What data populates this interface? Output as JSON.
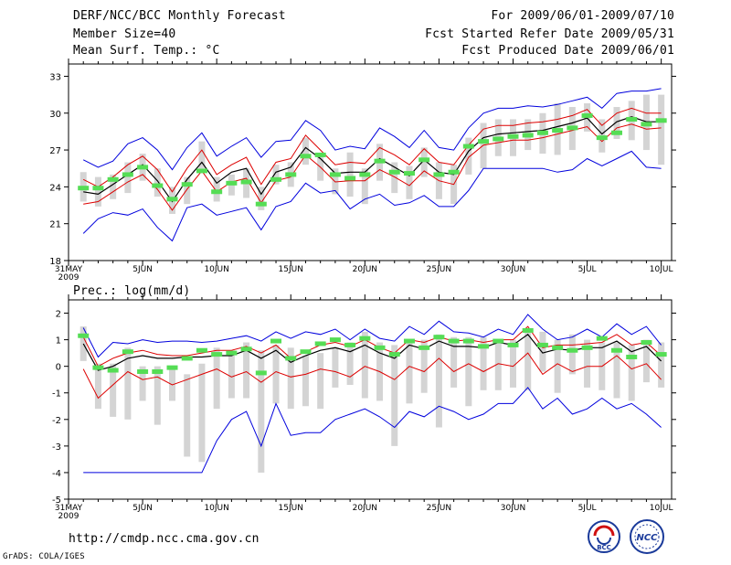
{
  "header": {
    "title": "DERF/NCC/BCC Monthly Forecast",
    "member_size": "Member Size=40",
    "period": "For 2009/06/01-2009/07/10",
    "started": "Fcst Started Refer Date 2009/05/31",
    "produced": "Fcst Produced Date 2009/06/01"
  },
  "footer": {
    "url": "http://cmdp.ncc.cma.gov.cn",
    "grads": "GrADS: COLA/IGES",
    "logo_left_text": "BCC",
    "logo_right_text": "NCC"
  },
  "x_ticks": [
    {
      "day": 0,
      "label": "31MAY",
      "sub": "2009"
    },
    {
      "day": 5,
      "label": "5JUN"
    },
    {
      "day": 10,
      "label": "10JUN"
    },
    {
      "day": 15,
      "label": "15JUN"
    },
    {
      "day": 20,
      "label": "20JUN"
    },
    {
      "day": 25,
      "label": "25JUN"
    },
    {
      "day": 30,
      "label": "30JUN"
    },
    {
      "day": 35,
      "label": "5JUL"
    },
    {
      "day": 40,
      "label": "10JUL"
    }
  ],
  "chart_data": [
    {
      "type": "line",
      "title": "Mean Surf. Temp.: °C",
      "ylim": [
        18,
        34
      ],
      "yticks": [
        18,
        21,
        24,
        27,
        30,
        33
      ],
      "x": [
        1,
        2,
        3,
        4,
        5,
        6,
        7,
        8,
        9,
        10,
        11,
        12,
        13,
        14,
        15,
        16,
        17,
        18,
        19,
        20,
        21,
        22,
        23,
        24,
        25,
        26,
        27,
        28,
        29,
        30,
        31,
        32,
        33,
        34,
        35,
        36,
        37,
        38,
        39,
        40
      ],
      "series": [
        {
          "name": "ensemble max",
          "color": "#0000dd",
          "values": [
            26.2,
            25.6,
            26.1,
            27.5,
            28.0,
            27.0,
            25.4,
            27.2,
            28.4,
            26.5,
            27.3,
            28.0,
            26.4,
            27.7,
            27.8,
            29.4,
            28.6,
            27.0,
            27.3,
            27.1,
            28.8,
            28.1,
            27.2,
            28.6,
            27.2,
            27.0,
            28.8,
            30.0,
            30.4,
            30.4,
            30.6,
            30.5,
            30.7,
            31.0,
            31.3,
            30.4,
            31.6,
            31.8,
            31.8,
            32.0
          ]
        },
        {
          "name": "upper bound",
          "color": "#dd0000",
          "values": [
            24.6,
            24.0,
            24.8,
            25.8,
            26.5,
            25.4,
            23.6,
            25.5,
            27.0,
            25.0,
            25.8,
            26.4,
            24.2,
            26.0,
            26.3,
            28.2,
            27.0,
            25.8,
            26.0,
            25.9,
            27.2,
            26.6,
            25.8,
            27.1,
            26.0,
            25.8,
            27.4,
            28.7,
            29.0,
            29.0,
            29.2,
            29.3,
            29.5,
            29.8,
            30.3,
            29.0,
            30.0,
            30.4,
            30.0,
            30.0
          ]
        },
        {
          "name": "ensemble mean",
          "color": "#000000",
          "values": [
            23.6,
            23.4,
            24.2,
            25.0,
            25.8,
            24.5,
            22.8,
            24.6,
            26.0,
            24.3,
            25.2,
            25.5,
            23.4,
            25.2,
            25.6,
            27.2,
            26.3,
            25.1,
            25.2,
            25.2,
            26.3,
            25.6,
            24.9,
            26.2,
            25.2,
            25.0,
            26.9,
            28.0,
            28.3,
            28.4,
            28.5,
            28.6,
            28.9,
            29.2,
            29.6,
            28.3,
            29.3,
            29.7,
            29.3,
            29.3
          ]
        },
        {
          "name": "lower bound",
          "color": "#dd0000",
          "values": [
            22.6,
            22.8,
            23.6,
            24.4,
            25.0,
            23.8,
            22.1,
            23.8,
            25.3,
            23.6,
            24.4,
            24.7,
            22.7,
            24.5,
            24.8,
            26.6,
            25.6,
            24.4,
            24.5,
            24.5,
            25.4,
            24.8,
            24.1,
            25.3,
            24.5,
            24.2,
            26.4,
            27.4,
            27.6,
            27.8,
            27.8,
            28.0,
            28.3,
            28.6,
            28.9,
            27.7,
            28.8,
            29.1,
            28.7,
            28.8
          ]
        },
        {
          "name": "ensemble min",
          "color": "#0000dd",
          "values": [
            20.2,
            21.4,
            21.9,
            21.7,
            22.2,
            20.7,
            19.6,
            22.3,
            22.6,
            21.7,
            22.0,
            22.3,
            20.5,
            22.4,
            22.8,
            24.3,
            23.5,
            23.7,
            22.2,
            23.0,
            23.4,
            22.5,
            22.7,
            23.3,
            22.4,
            22.4,
            23.7,
            25.5,
            25.5,
            25.5,
            25.5,
            25.5,
            25.2,
            25.4,
            26.3,
            25.7,
            26.3,
            26.9,
            25.6,
            25.5
          ]
        }
      ],
      "gray_ranges": [
        [
          22.8,
          25.2
        ],
        [
          22.4,
          24.8
        ],
        [
          23.0,
          25.0
        ],
        [
          23.5,
          26.0
        ],
        [
          24.5,
          26.7
        ],
        [
          23.2,
          25.5
        ],
        [
          21.8,
          24.0
        ],
        [
          22.6,
          24.8
        ],
        [
          25.5,
          27.7
        ],
        [
          22.8,
          24.8
        ],
        [
          23.3,
          25.0
        ],
        [
          23.1,
          25.5
        ],
        [
          22.1,
          24.0
        ],
        [
          24.2,
          25.8
        ],
        [
          24.0,
          26.0
        ],
        [
          25.8,
          28.0
        ],
        [
          24.5,
          26.7
        ],
        [
          23.4,
          25.5
        ],
        [
          23.2,
          26.8
        ],
        [
          22.6,
          25.5
        ],
        [
          24.5,
          27.5
        ],
        [
          23.5,
          26.0
        ],
        [
          23.0,
          25.7
        ],
        [
          24.8,
          27.2
        ],
        [
          23.0,
          26.0
        ],
        [
          22.6,
          25.8
        ],
        [
          25.0,
          28.0
        ],
        [
          25.5,
          29.2
        ],
        [
          26.5,
          29.5
        ],
        [
          26.5,
          29.5
        ],
        [
          27.0,
          29.5
        ],
        [
          26.7,
          30.0
        ],
        [
          26.6,
          30.8
        ],
        [
          27.0,
          30.5
        ],
        [
          28.5,
          30.8
        ],
        [
          26.8,
          29.5
        ],
        [
          27.9,
          30.5
        ],
        [
          27.8,
          31.0
        ],
        [
          27.0,
          31.5
        ],
        [
          25.8,
          31.5
        ]
      ],
      "obs": [
        23.9,
        23.9,
        24.6,
        25.0,
        25.6,
        24.1,
        23.0,
        24.2,
        25.3,
        23.6,
        24.3,
        24.4,
        22.6,
        24.6,
        25.0,
        26.5,
        26.6,
        25.0,
        24.7,
        25.0,
        26.1,
        25.2,
        25.1,
        26.2,
        25.0,
        25.2,
        27.3,
        27.7,
        27.9,
        28.1,
        28.2,
        28.4,
        28.6,
        28.8,
        29.8,
        28.0,
        28.4,
        29.5,
        29.1,
        29.4
      ]
    },
    {
      "type": "line",
      "title": "Prec.: log(mm/d)",
      "ylim": [
        -5,
        2.5
      ],
      "yticks": [
        -5,
        -4,
        -3,
        -2,
        -1,
        0,
        1,
        2
      ],
      "x": [
        1,
        2,
        3,
        4,
        5,
        6,
        7,
        8,
        9,
        10,
        11,
        12,
        13,
        14,
        15,
        16,
        17,
        18,
        19,
        20,
        21,
        22,
        23,
        24,
        25,
        26,
        27,
        28,
        29,
        30,
        31,
        32,
        33,
        34,
        35,
        36,
        37,
        38,
        39,
        40
      ],
      "series": [
        {
          "name": "ensemble max",
          "color": "#0000dd",
          "values": [
            1.45,
            0.35,
            0.9,
            0.85,
            1.0,
            0.9,
            0.95,
            0.95,
            0.9,
            0.95,
            1.05,
            1.15,
            0.95,
            1.3,
            1.05,
            1.3,
            1.2,
            1.4,
            1.0,
            1.4,
            1.05,
            0.95,
            1.5,
            1.2,
            1.7,
            1.3,
            1.25,
            1.1,
            1.4,
            1.2,
            1.95,
            1.4,
            1.0,
            1.1,
            1.4,
            1.1,
            1.6,
            1.2,
            1.5,
            0.8
          ]
        },
        {
          "name": "upper bound",
          "color": "#dd0000",
          "values": [
            1.1,
            0.0,
            0.3,
            0.5,
            0.6,
            0.45,
            0.4,
            0.4,
            0.5,
            0.6,
            0.6,
            0.75,
            0.5,
            0.8,
            0.3,
            0.55,
            0.8,
            0.9,
            0.75,
            1.0,
            0.7,
            0.5,
            1.0,
            0.9,
            1.1,
            0.95,
            1.0,
            0.9,
            1.0,
            1.0,
            1.5,
            0.7,
            0.8,
            0.8,
            0.85,
            0.9,
            1.2,
            0.8,
            0.9,
            0.4
          ]
        },
        {
          "name": "ensemble mean",
          "color": "#000000",
          "values": [
            0.85,
            -0.15,
            0.0,
            0.3,
            0.4,
            0.3,
            0.3,
            0.35,
            0.35,
            0.4,
            0.4,
            0.6,
            0.3,
            0.6,
            0.15,
            0.4,
            0.6,
            0.7,
            0.55,
            0.8,
            0.5,
            0.3,
            0.8,
            0.65,
            0.95,
            0.75,
            0.75,
            0.7,
            0.9,
            0.8,
            1.2,
            0.5,
            0.65,
            0.6,
            0.7,
            0.7,
            0.95,
            0.55,
            0.75,
            0.2
          ]
        },
        {
          "name": "lower bound",
          "color": "#dd0000",
          "values": [
            -0.1,
            -1.2,
            -0.7,
            -0.2,
            -0.5,
            -0.4,
            -0.7,
            -0.5,
            -0.3,
            -0.1,
            -0.4,
            -0.2,
            -0.6,
            -0.2,
            -0.4,
            -0.3,
            -0.1,
            -0.2,
            -0.4,
            0.0,
            -0.2,
            -0.5,
            0.0,
            -0.2,
            0.3,
            -0.2,
            0.1,
            -0.2,
            0.1,
            0.0,
            0.5,
            -0.3,
            0.1,
            -0.2,
            0.0,
            0.0,
            0.4,
            -0.1,
            0.1,
            -0.5
          ]
        },
        {
          "name": "ensemble min",
          "color": "#0000dd",
          "values": [
            -4.0,
            -4.0,
            -4.0,
            -4.0,
            -4.0,
            -4.0,
            -4.0,
            -4.0,
            -4.0,
            -2.8,
            -2.0,
            -1.7,
            -3.0,
            -1.4,
            -2.6,
            -2.5,
            -2.5,
            -2.0,
            -1.8,
            -1.6,
            -1.9,
            -2.3,
            -1.7,
            -1.9,
            -1.5,
            -1.7,
            -2.0,
            -1.8,
            -1.4,
            -1.4,
            -0.8,
            -1.6,
            -1.2,
            -1.8,
            -1.6,
            -1.2,
            -1.6,
            -1.4,
            -1.8,
            -2.3
          ]
        },
        {
          "name": "obs",
          "color": "#55dd55",
          "values": [
            1.15,
            -0.05,
            -0.15,
            0.55,
            -0.2,
            -0.2,
            -0.05,
            0.3,
            0.6,
            0.45,
            0.5,
            0.65,
            -0.25,
            0.95,
            0.3,
            0.55,
            0.85,
            1.0,
            0.8,
            1.05,
            0.7,
            0.45,
            0.95,
            0.7,
            1.1,
            0.95,
            0.95,
            0.75,
            0.95,
            0.8,
            1.35,
            0.8,
            0.7,
            0.6,
            0.7,
            1.05,
            0.6,
            0.35,
            0.9,
            0.45
          ]
        }
      ],
      "gray_ranges": [
        [
          0.2,
          1.5
        ],
        [
          -1.6,
          0.1
        ],
        [
          -1.9,
          0.1
        ],
        [
          -2.0,
          0.7
        ],
        [
          -1.3,
          0.0
        ],
        [
          -2.2,
          0.0
        ],
        [
          -1.3,
          0.0
        ],
        [
          -3.4,
          -0.3
        ],
        [
          -3.6,
          0.1
        ],
        [
          -1.6,
          0.7
        ],
        [
          -1.2,
          0.6
        ],
        [
          -1.2,
          0.9
        ],
        [
          -4.0,
          0.6
        ],
        [
          -1.4,
          0.8
        ],
        [
          -1.6,
          0.7
        ],
        [
          -1.5,
          0.4
        ],
        [
          -1.6,
          0.5
        ],
        [
          -0.8,
          0.7
        ],
        [
          -0.7,
          0.9
        ],
        [
          -1.2,
          1.3
        ],
        [
          -1.3,
          0.9
        ],
        [
          -3.0,
          0.8
        ],
        [
          -1.4,
          1.0
        ],
        [
          -1.0,
          1.0
        ],
        [
          -2.3,
          1.2
        ],
        [
          -0.8,
          1.1
        ],
        [
          -1.5,
          1.1
        ],
        [
          -0.9,
          1.1
        ],
        [
          -0.9,
          1.0
        ],
        [
          -0.8,
          1.0
        ],
        [
          -0.9,
          1.3
        ],
        [
          -0.2,
          1.3
        ],
        [
          -1.0,
          1.0
        ],
        [
          -0.3,
          1.2
        ],
        [
          -0.8,
          1.0
        ],
        [
          -0.9,
          0.9
        ],
        [
          -1.2,
          0.9
        ],
        [
          -1.3,
          0.8
        ],
        [
          -0.6,
          1.0
        ],
        [
          -0.8,
          0.9
        ]
      ]
    }
  ]
}
